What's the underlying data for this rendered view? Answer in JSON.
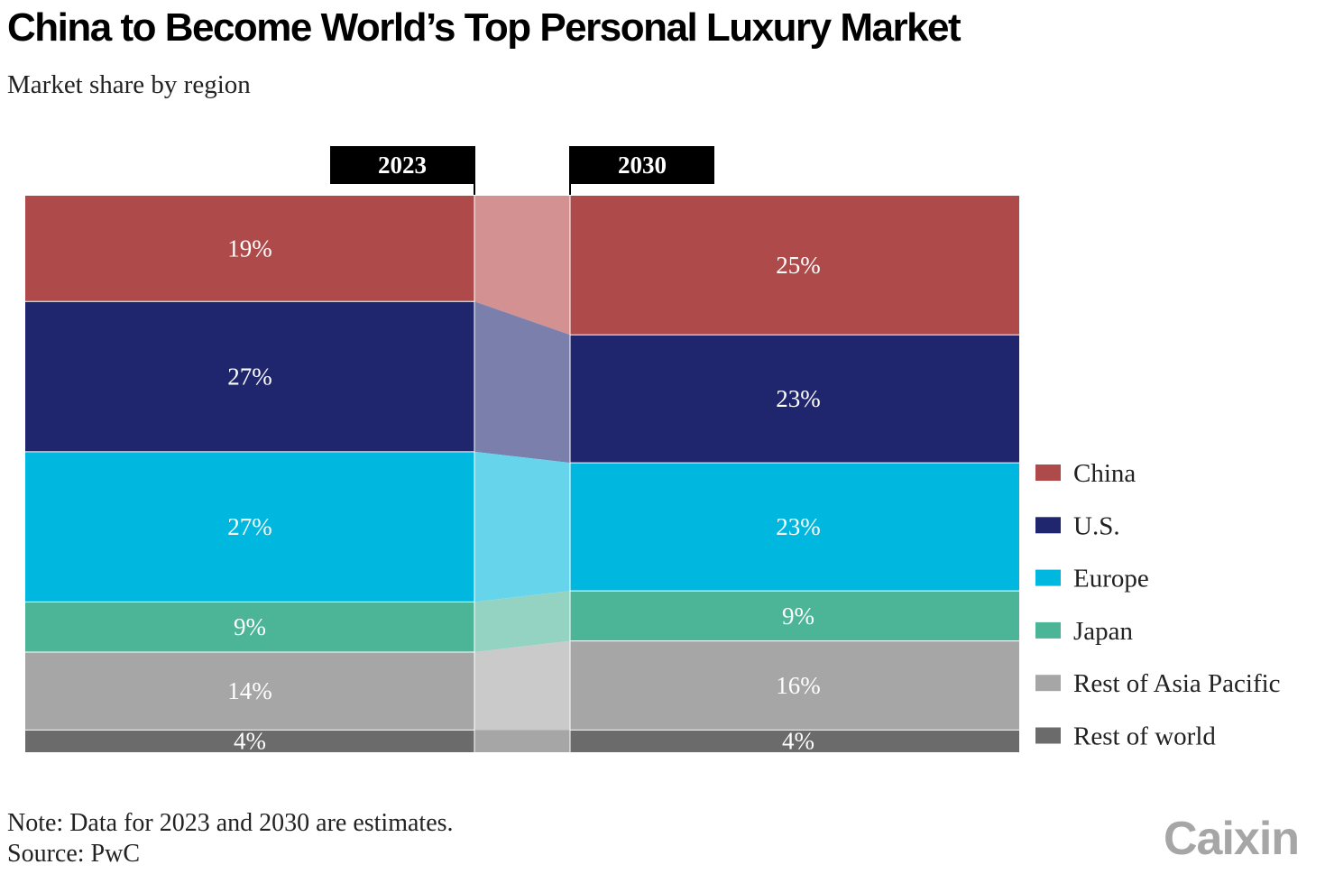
{
  "title": "China to Become World’s Top Personal Luxury Market",
  "subtitle": "Market share by region",
  "note": "Note: Data for 2023 and 2030 are estimates.",
  "source": "Source: PwC",
  "logo": "Caixin",
  "chart_data": {
    "type": "bar",
    "stacked": true,
    "normalized": true,
    "categories": [
      "2023",
      "2030"
    ],
    "series": [
      {
        "name": "China",
        "values": [
          19,
          25
        ],
        "color": "#ae4a4a",
        "link_color": "#d39191"
      },
      {
        "name": "U.S.",
        "values": [
          27,
          23
        ],
        "color": "#20266d",
        "link_color": "#7a7fab"
      },
      {
        "name": "Europe",
        "values": [
          27,
          23
        ],
        "color": "#00b8df",
        "link_color": "#66d5ec"
      },
      {
        "name": "Japan",
        "values": [
          9,
          9
        ],
        "color": "#4db597",
        "link_color": "#94d3c1"
      },
      {
        "name": "Rest of Asia Pacific",
        "values": [
          14,
          16
        ],
        "color": "#a6a6a6",
        "link_color": "#cacaca"
      },
      {
        "name": "Rest of world",
        "values": [
          4,
          4
        ],
        "color": "#6b6b6b",
        "link_color": "#a6a6a6"
      }
    ],
    "data_labels": [
      [
        "19%",
        "25%"
      ],
      [
        "27%",
        "23%"
      ],
      [
        "27%",
        "23%"
      ],
      [
        "9%",
        "9%"
      ],
      [
        "14%",
        "16%"
      ],
      [
        "4%",
        "4%"
      ]
    ],
    "legend_position": "right",
    "grid": false
  }
}
